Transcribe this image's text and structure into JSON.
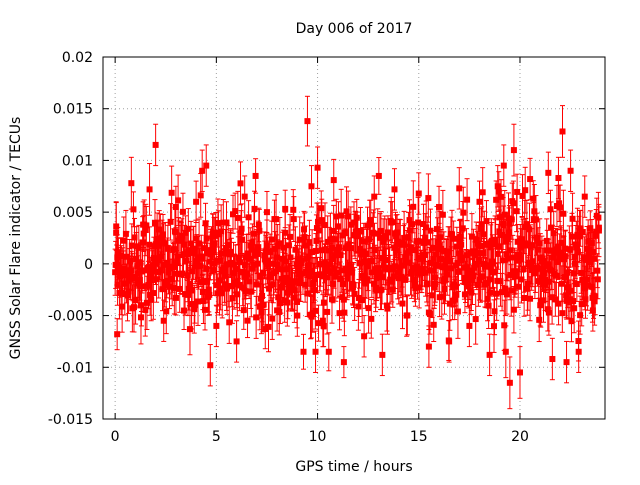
{
  "chart_data": {
    "type": "scatter",
    "title": "Day 006 of 2017",
    "xlabel": "GPS time / hours",
    "ylabel": "GNSS Solar Flare indicator / TECUs",
    "xlim": [
      -0.6,
      24.2
    ],
    "ylim": [
      -0.015,
      0.02
    ],
    "xticks": [
      0,
      5,
      10,
      15,
      20
    ],
    "xtick_labels": [
      "0",
      "5",
      "10",
      "15",
      "20"
    ],
    "yticks": [
      -0.015,
      -0.01,
      -0.005,
      0,
      0.005,
      0.01,
      0.015,
      0.02
    ],
    "ytick_labels": [
      "-0.015",
      "-0.01",
      "-0.005",
      "0",
      "0.005",
      "0.01",
      "0.015",
      "0.02"
    ],
    "grid": true,
    "series_color": "#ff0000",
    "marker": "filled-square",
    "error_bars": true,
    "series": [
      {
        "x": [
          0.05,
          0.1,
          0.12,
          0.8,
          1.3,
          1.7,
          2.0,
          2.4,
          3.0,
          3.6,
          4.0,
          4.3,
          4.5,
          4.7,
          5.0,
          5.5,
          6.0,
          6.4,
          7.0,
          7.5,
          8.0,
          8.4,
          9.0,
          9.5,
          9.7,
          9.9,
          10.0,
          10.3,
          10.8,
          11.3,
          11.8,
          12.3,
          12.8,
          13.2,
          13.8,
          14.4,
          15.0,
          15.5,
          16.0,
          16.5,
          17.0,
          17.5,
          18.0,
          18.5,
          18.9,
          19.2,
          19.3,
          19.5,
          19.7,
          20.0,
          20.5,
          21.0,
          21.4,
          21.6,
          21.9,
          22.1,
          22.3,
          22.5,
          22.9,
          23.2,
          23.6,
          23.9
        ],
        "y": [
          0.003,
          -0.0068,
          -0.002,
          0.0078,
          -0.004,
          0.0072,
          0.0115,
          -0.0055,
          0.0055,
          -0.003,
          0.006,
          0.009,
          0.0095,
          -0.0098,
          -0.006,
          0.004,
          -0.0075,
          0.0065,
          -0.002,
          0.005,
          -0.0045,
          0.003,
          -0.005,
          0.0138,
          0.0075,
          -0.0085,
          0.0093,
          -0.006,
          0.0081,
          -0.0095,
          0.004,
          -0.007,
          0.0065,
          -0.0088,
          0.0072,
          -0.005,
          0.0068,
          -0.008,
          0.0055,
          -0.0075,
          0.0073,
          -0.006,
          0.006,
          -0.0088,
          0.0075,
          0.0095,
          -0.0085,
          -0.0115,
          0.011,
          -0.0105,
          0.0082,
          -0.004,
          0.0088,
          -0.0092,
          0.0083,
          0.0128,
          -0.0095,
          0.009,
          -0.0085,
          0.0065,
          -0.0045,
          0.0035
        ],
        "err": [
          0.003,
          0.0015,
          0.002,
          0.0025,
          0.002,
          0.0025,
          0.002,
          0.002,
          0.002,
          0.002,
          0.002,
          0.002,
          0.002,
          0.002,
          0.002,
          0.002,
          0.002,
          0.002,
          0.002,
          0.002,
          0.002,
          0.002,
          0.002,
          0.0024,
          0.002,
          0.002,
          0.002,
          0.002,
          0.002,
          0.0015,
          0.002,
          0.002,
          0.002,
          0.002,
          0.002,
          0.002,
          0.002,
          0.002,
          0.002,
          0.002,
          0.002,
          0.002,
          0.002,
          0.002,
          0.002,
          0.002,
          0.0025,
          0.0025,
          0.0025,
          0.0025,
          0.002,
          0.002,
          0.002,
          0.002,
          0.002,
          0.0025,
          0.002,
          0.002,
          0.002,
          0.002,
          0.002,
          0.002
        ]
      }
    ],
    "cloud": {
      "x_start": 0.0,
      "x_end": 23.9,
      "n_points": 900,
      "typical_abs_y": 0.004,
      "typical_err": 0.002
    }
  }
}
